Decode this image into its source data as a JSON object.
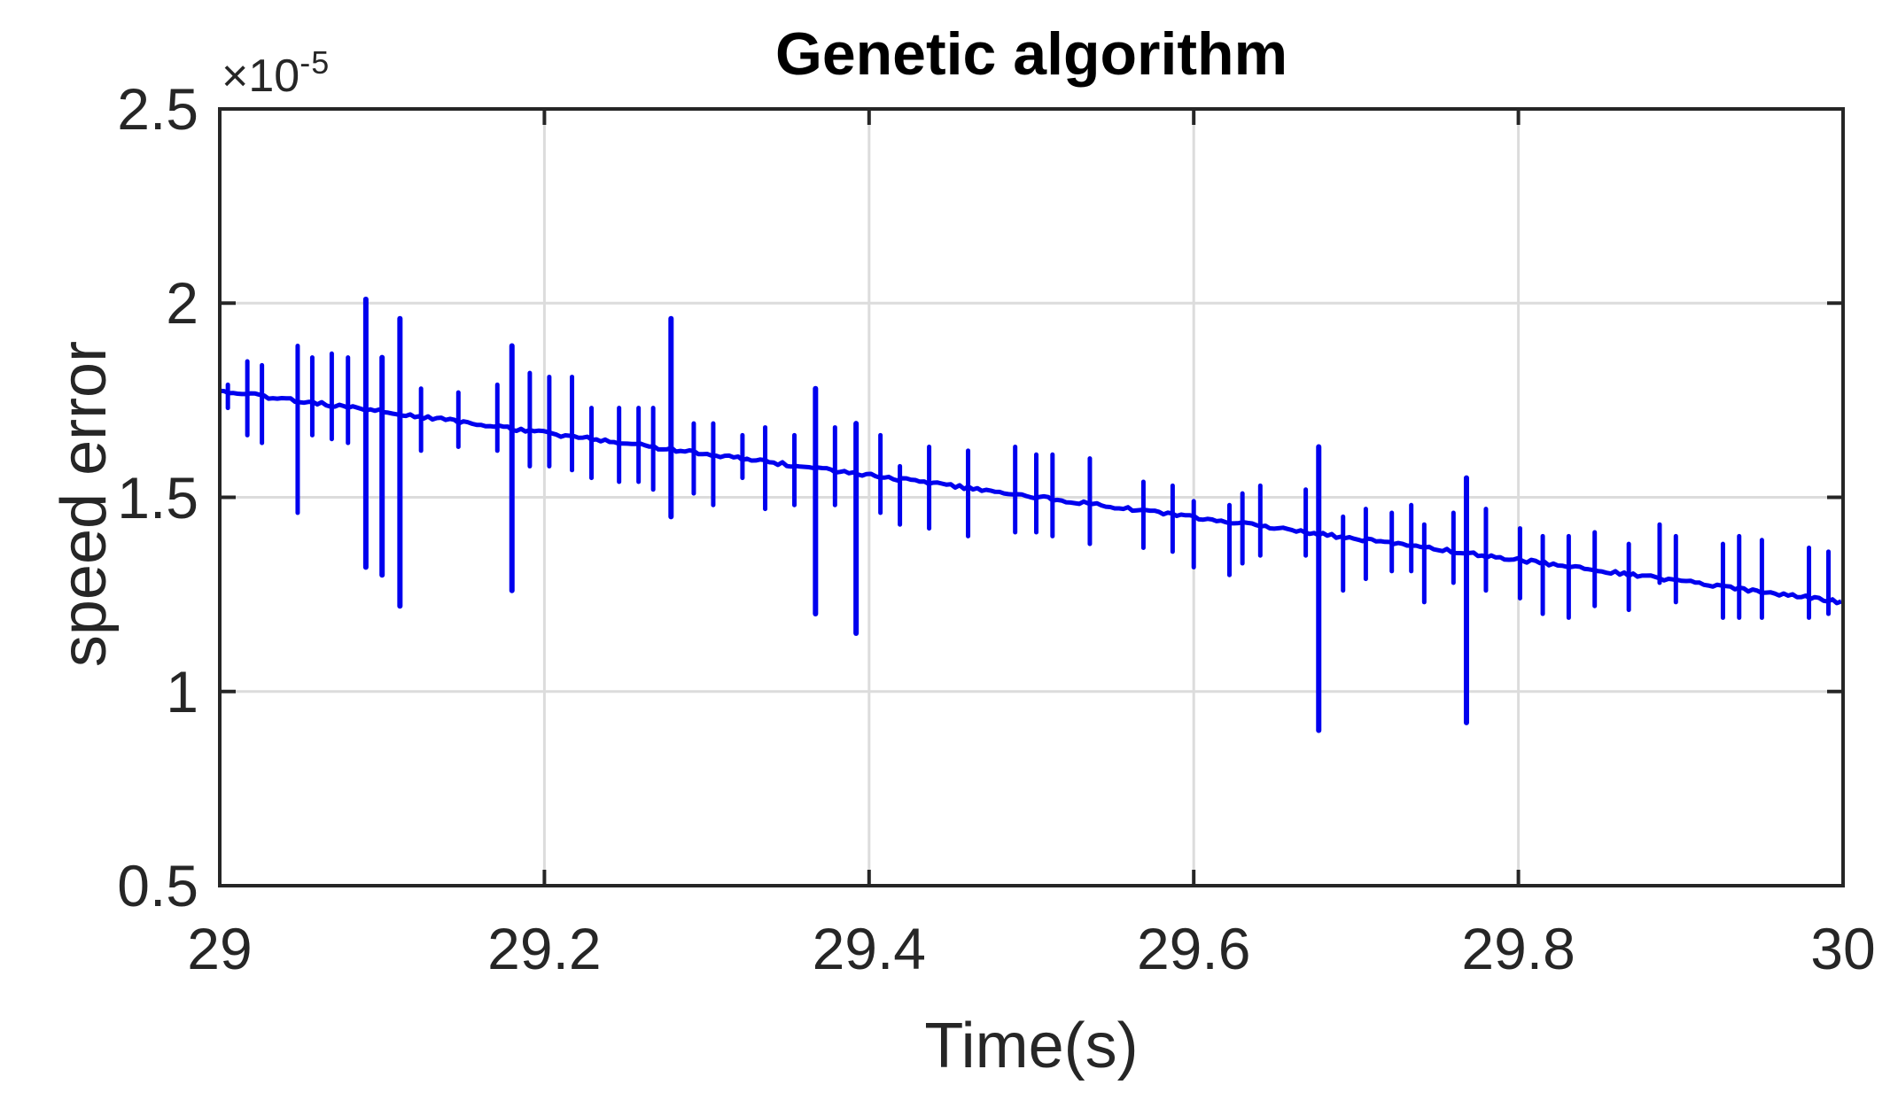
{
  "figure": {
    "title": "Genetic algorithm",
    "xlabel": "Time(s)",
    "ylabel": "speed error",
    "y_axis_multiplier": {
      "base": "×10",
      "exponent": "-5"
    }
  },
  "style": {
    "background": "#FFFFFF",
    "axis_color": "#262626",
    "grid_color": "#DCDCDC",
    "text_color": "#262626",
    "title_color": "#000000",
    "line_color": "#0000EE"
  },
  "chart_data": {
    "type": "line",
    "title": "Genetic algorithm",
    "xlabel": "Time(s)",
    "ylabel": "speed error",
    "legend": null,
    "grid": true,
    "value_unit": "1e-5 (axis shows ×10^-5)",
    "xlim": [
      29,
      30
    ],
    "ylim_scaled": [
      0.5,
      2.5
    ],
    "x_ticks": [
      29,
      29.2,
      29.4,
      29.6,
      29.8,
      30
    ],
    "x_tick_labels": [
      "29",
      "29.2",
      "29.4",
      "29.6",
      "29.8",
      "30"
    ],
    "y_ticks_scaled": [
      0.5,
      1,
      1.5,
      2,
      2.5
    ],
    "y_tick_labels": [
      "0.5",
      "1",
      "1.5",
      "2",
      "2.5"
    ],
    "series": [
      {
        "name": "speed error",
        "color": "#0000EE",
        "baseline": {
          "t_start": 29.0,
          "value_start": 1.775,
          "t_end": 30.0,
          "value_end": 1.23
        },
        "spikes": [
          {
            "t": 29.005,
            "high": 1.79,
            "low": 1.73
          },
          {
            "t": 29.017,
            "high": 1.85,
            "low": 1.66
          },
          {
            "t": 29.026,
            "high": 1.84,
            "low": 1.64
          },
          {
            "t": 29.048,
            "high": 1.89,
            "low": 1.46
          },
          {
            "t": 29.057,
            "high": 1.86,
            "low": 1.66
          },
          {
            "t": 29.069,
            "high": 1.87,
            "low": 1.65
          },
          {
            "t": 29.079,
            "high": 1.86,
            "low": 1.64
          },
          {
            "t": 29.09,
            "high": 2.01,
            "low": 1.32
          },
          {
            "t": 29.1,
            "high": 1.86,
            "low": 1.3
          },
          {
            "t": 29.111,
            "high": 1.96,
            "low": 1.22
          },
          {
            "t": 29.124,
            "high": 1.78,
            "low": 1.62
          },
          {
            "t": 29.147,
            "high": 1.77,
            "low": 1.63
          },
          {
            "t": 29.171,
            "high": 1.79,
            "low": 1.62
          },
          {
            "t": 29.18,
            "high": 1.89,
            "low": 1.26
          },
          {
            "t": 29.191,
            "high": 1.82,
            "low": 1.58
          },
          {
            "t": 29.203,
            "high": 1.81,
            "low": 1.58
          },
          {
            "t": 29.217,
            "high": 1.81,
            "low": 1.57
          },
          {
            "t": 29.229,
            "high": 1.73,
            "low": 1.55
          },
          {
            "t": 29.246,
            "high": 1.73,
            "low": 1.54
          },
          {
            "t": 29.258,
            "high": 1.73,
            "low": 1.54
          },
          {
            "t": 29.267,
            "high": 1.73,
            "low": 1.52
          },
          {
            "t": 29.278,
            "high": 1.96,
            "low": 1.45
          },
          {
            "t": 29.292,
            "high": 1.69,
            "low": 1.51
          },
          {
            "t": 29.304,
            "high": 1.69,
            "low": 1.48
          },
          {
            "t": 29.322,
            "high": 1.66,
            "low": 1.55
          },
          {
            "t": 29.336,
            "high": 1.68,
            "low": 1.47
          },
          {
            "t": 29.354,
            "high": 1.66,
            "low": 1.48
          },
          {
            "t": 29.367,
            "high": 1.78,
            "low": 1.2
          },
          {
            "t": 29.379,
            "high": 1.68,
            "low": 1.48
          },
          {
            "t": 29.392,
            "high": 1.69,
            "low": 1.15
          },
          {
            "t": 29.407,
            "high": 1.66,
            "low": 1.46
          },
          {
            "t": 29.419,
            "high": 1.58,
            "low": 1.43
          },
          {
            "t": 29.437,
            "high": 1.63,
            "low": 1.42
          },
          {
            "t": 29.461,
            "high": 1.62,
            "low": 1.4
          },
          {
            "t": 29.49,
            "high": 1.63,
            "low": 1.41
          },
          {
            "t": 29.503,
            "high": 1.61,
            "low": 1.41
          },
          {
            "t": 29.513,
            "high": 1.61,
            "low": 1.4
          },
          {
            "t": 29.536,
            "high": 1.6,
            "low": 1.38
          },
          {
            "t": 29.569,
            "high": 1.54,
            "low": 1.37
          },
          {
            "t": 29.587,
            "high": 1.53,
            "low": 1.36
          },
          {
            "t": 29.6,
            "high": 1.49,
            "low": 1.32
          },
          {
            "t": 29.622,
            "high": 1.48,
            "low": 1.3
          },
          {
            "t": 29.63,
            "high": 1.51,
            "low": 1.33
          },
          {
            "t": 29.641,
            "high": 1.53,
            "low": 1.35
          },
          {
            "t": 29.669,
            "high": 1.52,
            "low": 1.35
          },
          {
            "t": 29.677,
            "high": 1.63,
            "low": 0.9
          },
          {
            "t": 29.692,
            "high": 1.45,
            "low": 1.26
          },
          {
            "t": 29.706,
            "high": 1.47,
            "low": 1.29
          },
          {
            "t": 29.722,
            "high": 1.46,
            "low": 1.31
          },
          {
            "t": 29.734,
            "high": 1.48,
            "low": 1.31
          },
          {
            "t": 29.742,
            "high": 1.43,
            "low": 1.23
          },
          {
            "t": 29.76,
            "high": 1.46,
            "low": 1.28
          },
          {
            "t": 29.768,
            "high": 1.55,
            "low": 0.92
          },
          {
            "t": 29.78,
            "high": 1.47,
            "low": 1.26
          },
          {
            "t": 29.801,
            "high": 1.42,
            "low": 1.24
          },
          {
            "t": 29.815,
            "high": 1.4,
            "low": 1.2
          },
          {
            "t": 29.831,
            "high": 1.4,
            "low": 1.19
          },
          {
            "t": 29.847,
            "high": 1.41,
            "low": 1.22
          },
          {
            "t": 29.868,
            "high": 1.38,
            "low": 1.21
          },
          {
            "t": 29.887,
            "high": 1.43,
            "low": 1.28
          },
          {
            "t": 29.897,
            "high": 1.4,
            "low": 1.23
          },
          {
            "t": 29.926,
            "high": 1.38,
            "low": 1.19
          },
          {
            "t": 29.936,
            "high": 1.4,
            "low": 1.19
          },
          {
            "t": 29.95,
            "high": 1.39,
            "low": 1.19
          },
          {
            "t": 29.979,
            "high": 1.37,
            "low": 1.19
          },
          {
            "t": 29.991,
            "high": 1.36,
            "low": 1.2
          }
        ]
      }
    ]
  }
}
